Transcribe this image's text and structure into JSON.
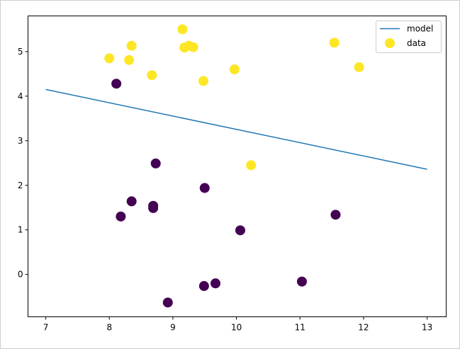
{
  "chart_data": {
    "type": "scatter",
    "title": "",
    "xlabel": "",
    "ylabel": "",
    "xlim": [
      6.72,
      13.3
    ],
    "ylim": [
      -0.95,
      5.8
    ],
    "xticks": [
      7,
      8,
      9,
      10,
      11,
      12,
      13
    ],
    "yticks": [
      0,
      1,
      2,
      3,
      4,
      5
    ],
    "grid": false,
    "legend_position": "top-right",
    "legend": [
      {
        "label": "model",
        "kind": "line",
        "color": "#1f77b4"
      },
      {
        "label": "data",
        "kind": "marker",
        "color": "#fde725"
      }
    ],
    "model_line": {
      "name": "model",
      "color": "#1f77b4",
      "x": [
        7.0,
        13.0
      ],
      "y": [
        4.15,
        2.36
      ]
    },
    "data_points": {
      "name": "data",
      "class_colors": {
        "0": "#440154",
        "1": "#fde725"
      },
      "points": [
        {
          "x": 8.0,
          "y": 4.85,
          "class": 1
        },
        {
          "x": 8.35,
          "y": 5.13,
          "class": 1
        },
        {
          "x": 8.31,
          "y": 4.81,
          "class": 1
        },
        {
          "x": 8.67,
          "y": 4.47,
          "class": 1
        },
        {
          "x": 9.15,
          "y": 5.5,
          "class": 1
        },
        {
          "x": 9.18,
          "y": 5.09,
          "class": 1
        },
        {
          "x": 9.25,
          "y": 5.13,
          "class": 1
        },
        {
          "x": 9.32,
          "y": 5.1,
          "class": 1
        },
        {
          "x": 9.48,
          "y": 4.34,
          "class": 1
        },
        {
          "x": 9.97,
          "y": 4.6,
          "class": 1
        },
        {
          "x": 10.23,
          "y": 2.45,
          "class": 1
        },
        {
          "x": 11.54,
          "y": 5.2,
          "class": 1
        },
        {
          "x": 11.93,
          "y": 4.65,
          "class": 1
        },
        {
          "x": 8.11,
          "y": 4.28,
          "class": 0
        },
        {
          "x": 8.73,
          "y": 2.49,
          "class": 0
        },
        {
          "x": 8.35,
          "y": 1.64,
          "class": 0
        },
        {
          "x": 8.18,
          "y": 1.3,
          "class": 0
        },
        {
          "x": 8.69,
          "y": 1.54,
          "class": 0
        },
        {
          "x": 8.69,
          "y": 1.49,
          "class": 0
        },
        {
          "x": 9.5,
          "y": 1.94,
          "class": 0
        },
        {
          "x": 10.06,
          "y": 0.99,
          "class": 0
        },
        {
          "x": 11.56,
          "y": 1.34,
          "class": 0
        },
        {
          "x": 9.49,
          "y": -0.26,
          "class": 0
        },
        {
          "x": 9.67,
          "y": -0.2,
          "class": 0
        },
        {
          "x": 11.03,
          "y": -0.16,
          "class": 0
        },
        {
          "x": 8.92,
          "y": -0.63,
          "class": 0
        }
      ]
    }
  }
}
